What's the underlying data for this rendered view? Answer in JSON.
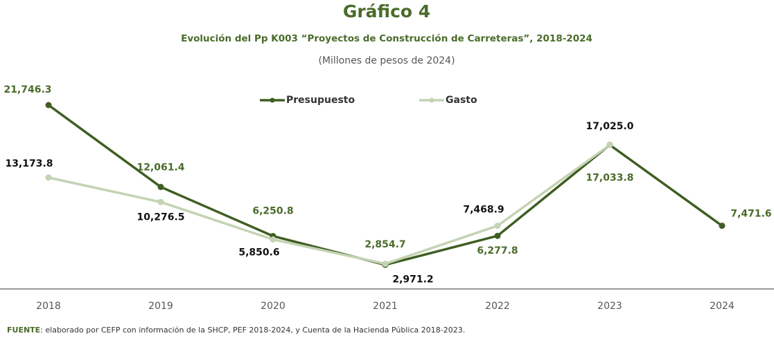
{
  "chart_data": {
    "type": "line",
    "title": "Gráfico 4",
    "subtitle": "Evolución  del Pp K003 “Proyectos de Construcción de Carreteras”,  2018-2024",
    "units_note": "(Millones de pesos de 2024)",
    "categories": [
      "2018",
      "2019",
      "2020",
      "2021",
      "2022",
      "2023",
      "2024"
    ],
    "series": [
      {
        "name": "Presupuesto",
        "color": "#3f5e22",
        "label_color": "#4a6b2a",
        "values": [
          21746.3,
          12061.4,
          6250.8,
          2854.7,
          6277.8,
          17033.8,
          7471.6
        ],
        "value_labels": [
          "21,746.3",
          "12,061.4",
          "6,250.8",
          "2,854.7",
          "6,277.8",
          "17,033.8",
          "7,471.6"
        ]
      },
      {
        "name": "Gasto",
        "color": "#c3d3b3",
        "label_color": "#111111",
        "values": [
          13173.8,
          10276.5,
          5850.6,
          2971.2,
          7468.9,
          17025.0,
          null
        ],
        "value_labels": [
          "13,173.8",
          "10,276.5",
          "5,850.6",
          "2,971.2",
          "7,468.9",
          "17,025.0",
          null
        ]
      }
    ],
    "legend": "top",
    "source_label": "FUENTE",
    "source": ": elaborado por CEFP con información de la SHCP, PEF 2018-2024, y Cuenta de la Hacienda Pública 2018-2023."
  }
}
